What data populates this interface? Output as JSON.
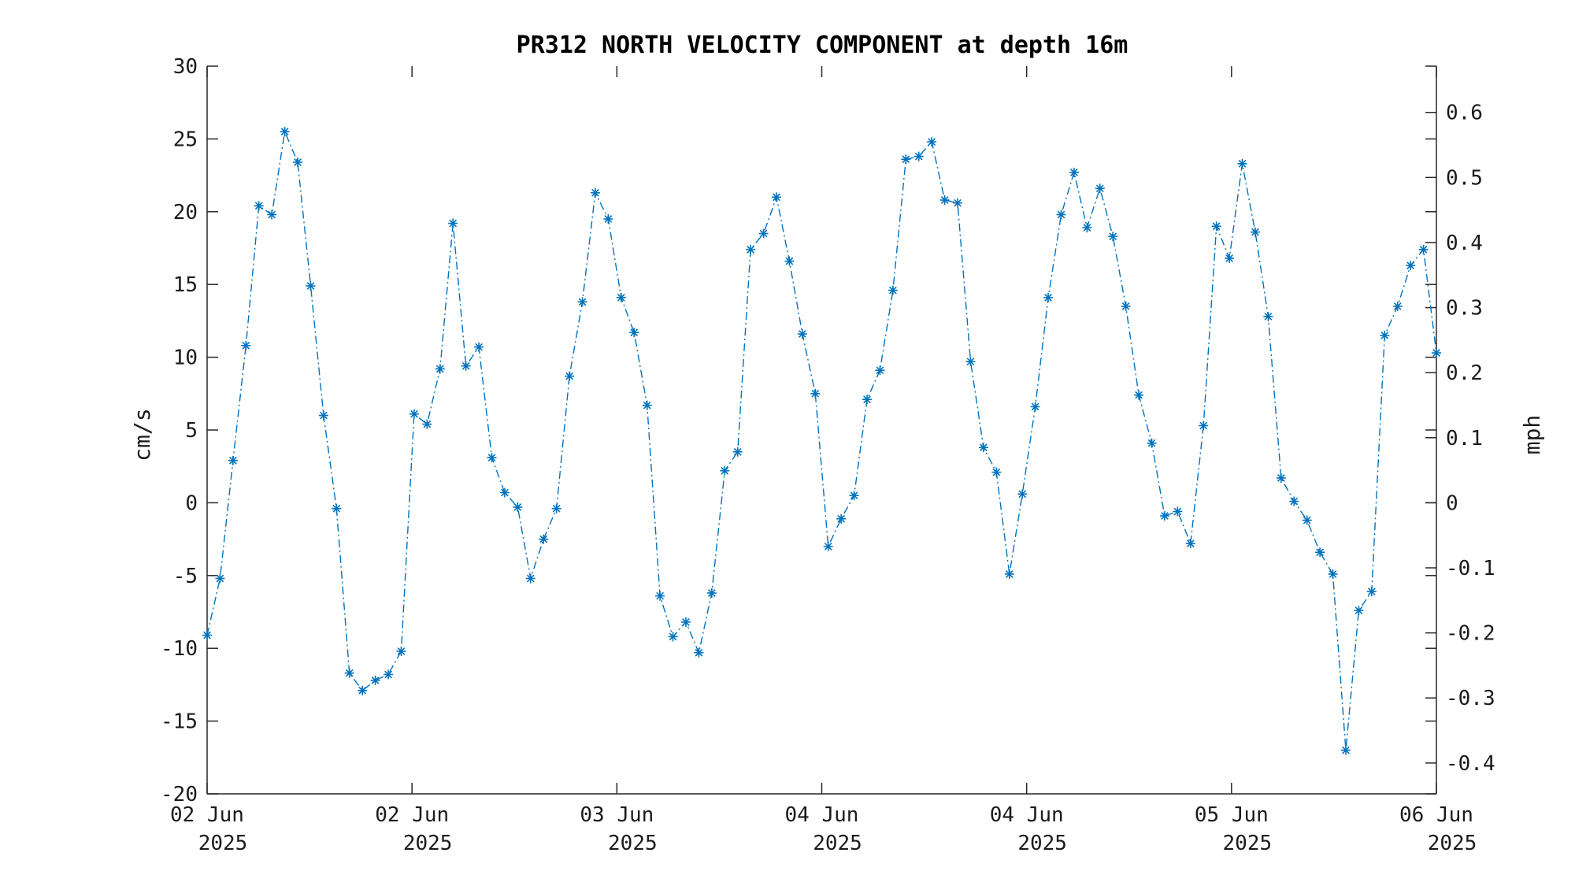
{
  "chart_data": {
    "type": "line",
    "title": "PR312 NORTH VELOCITY COMPONENT at depth 16m",
    "ylabel": "cm/s",
    "y2label": "mph",
    "ylim": [
      -20,
      30
    ],
    "yticks": [
      -20,
      -15,
      -10,
      -5,
      0,
      5,
      10,
      15,
      20,
      25,
      30
    ],
    "y2ticks": [
      "0.6",
      "0.5",
      "0.4",
      "0.3",
      "0.2",
      "0.1",
      "0",
      "-0.1",
      "-0.2",
      "-0.3",
      "-0.4"
    ],
    "y2_values": [
      0.6,
      0.5,
      0.4,
      0.3,
      0.2,
      0.1,
      0,
      -0.1,
      -0.2,
      -0.3,
      -0.4
    ],
    "y2_per_y": 0.02237,
    "xticks": [
      {
        "day": "02 Jun",
        "year": "2025"
      },
      {
        "day": "02 Jun",
        "year": "2025"
      },
      {
        "day": "03 Jun",
        "year": "2025"
      },
      {
        "day": "04 Jun",
        "year": "2025"
      },
      {
        "day": "04 Jun",
        "year": "2025"
      },
      {
        "day": "05 Jun",
        "year": "2025"
      },
      {
        "day": "06 Jun",
        "year": "2025"
      }
    ],
    "grid": false,
    "line_color": "#0072BD",
    "marker": "asterisk",
    "series": [
      {
        "values": [
          -9.1,
          -5.2,
          2.9,
          10.8,
          20.4,
          19.8,
          25.5,
          23.4,
          14.9,
          6.0,
          -0.4,
          -11.7,
          -12.9,
          -12.2,
          -11.8,
          -10.2,
          6.1,
          5.4,
          9.2,
          19.2,
          9.4,
          10.7,
          3.1,
          0.7,
          -0.3,
          -5.2,
          -2.5,
          -0.4,
          8.7,
          13.8,
          21.3,
          19.5,
          14.1,
          11.7,
          6.7,
          -6.4,
          -9.2,
          -8.2,
          -10.3,
          -6.2,
          2.2,
          3.5,
          17.4,
          18.5,
          21.0,
          16.6,
          11.6,
          7.5,
          -3.0,
          -1.1,
          0.5,
          7.1,
          9.1,
          14.6,
          23.6,
          23.8,
          24.8,
          20.8,
          20.6,
          9.7,
          3.8,
          2.1,
          -4.9,
          0.6,
          6.6,
          14.1,
          19.8,
          22.7,
          18.9,
          21.6,
          18.3,
          13.5,
          7.4,
          4.1,
          -0.9,
          -0.6,
          -2.8,
          5.3,
          19.0,
          16.8,
          23.3,
          18.6,
          12.8,
          1.7,
          0.1,
          -1.2,
          -3.4,
          -4.9,
          -17.0,
          -7.4,
          -6.1,
          11.5,
          13.5,
          16.3,
          17.4,
          10.3
        ]
      }
    ]
  }
}
